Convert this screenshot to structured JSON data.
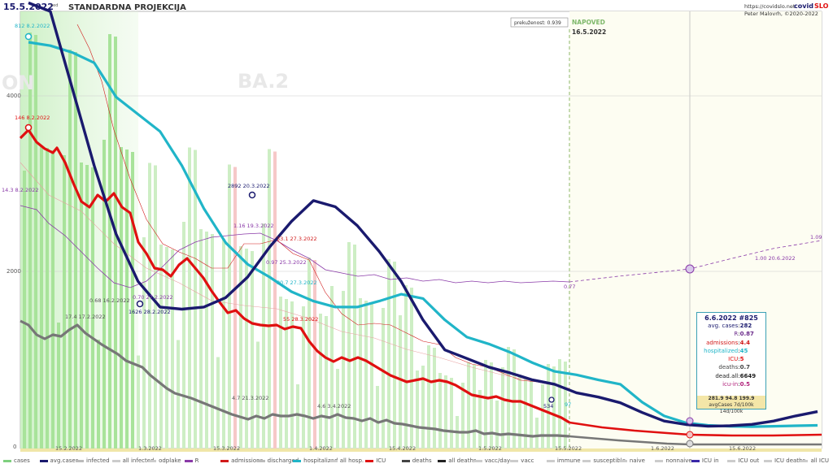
{
  "header": {
    "date": "15.5.2022",
    "date_sup": "ned",
    "title": "STANDARDNA PROJEKCIJA",
    "url": "https://covidslo.net",
    "brand_a": "covid",
    "brand_b": "SLO",
    "author": "Peter Malovrh, ©2020-2022",
    "forecast_label": "NAPOVED",
    "forecast_date": "16.5.2022",
    "exceed_label": "prekuženost: 0.939",
    "bg_left": "ON",
    "bg_variant": "BA.2"
  },
  "info_box": {
    "title": "6.6.2022 #825",
    "rows": [
      {
        "key": "avg. cases",
        "val": "282",
        "color": "#1a1a6e"
      },
      {
        "key": "R",
        "val": "0.87",
        "color": "#6a2a8a"
      },
      {
        "key": "admissions",
        "val": "4.4",
        "color": "#d11a1a"
      },
      {
        "key": "hospitalized",
        "val": "45",
        "color": "#20b5c8"
      },
      {
        "key": "ICU",
        "val": "5",
        "color": "#e01010"
      },
      {
        "key": "deaths",
        "val": "0.7",
        "color": "#444444"
      },
      {
        "key": "dead.all",
        "val": "6649",
        "color": "#222222"
      },
      {
        "key": "icu-in",
        "val": "0.5",
        "color": "#b0207a"
      }
    ],
    "foot1": "281.9   94.8   199.9",
    "foot2": "avgCases 7d/100k 14d/100k"
  },
  "legend": [
    {
      "label": "cases",
      "color": "#7ed07e"
    },
    {
      "label": "avg.cases",
      "color": "#1a1a6e"
    },
    {
      "label": "infected",
      "color": "#bbbbbb"
    },
    {
      "label": "all infected",
      "color": "#cccccc"
    },
    {
      "label": "odplake",
      "color": "#cccccc"
    },
    {
      "label": "R",
      "color": "#8a3aa8"
    },
    {
      "label": "admissions",
      "color": "#d11a1a"
    },
    {
      "label": "discharged",
      "color": "#bbbbbb"
    },
    {
      "label": "hospitalized",
      "color": "#20b5c8"
    },
    {
      "label": "all hosp.",
      "color": "#cccccc"
    },
    {
      "label": "ICU",
      "color": "#e01010"
    },
    {
      "label": "deaths",
      "color": "#444444"
    },
    {
      "label": "all deaths",
      "color": "#222222"
    },
    {
      "label": "vacc/day",
      "color": "#cccccc"
    },
    {
      "label": "vacc",
      "color": "#cccccc"
    },
    {
      "label": "immune",
      "color": "#cccccc"
    },
    {
      "label": "susceptible",
      "color": "#cccccc"
    },
    {
      "label": "naive",
      "color": "#cccccc"
    },
    {
      "label": "nonnaive",
      "color": "#cccccc"
    },
    {
      "label": "ICU in",
      "color": "#3a28a8"
    },
    {
      "label": "ICU out",
      "color": "#cccccc"
    },
    {
      "label": "ICU deaths",
      "color": "#cccccc"
    },
    {
      "label": "all ICU",
      "color": "#cccccc"
    }
  ],
  "chart_data": {
    "type": "line",
    "title": "STANDARDNA PROJEKCIJA",
    "y_ticks": [
      "0",
      "2000",
      "4000"
    ],
    "ylim": [
      0,
      5100
    ],
    "x_tick_labels": [
      "15.2.2022",
      "1.3.2022",
      "15.3.2022",
      "1.4.2022",
      "15.4.2022",
      "1.5.2022",
      "15.5.2022",
      "1.6.2022",
      "15.6.2022"
    ],
    "forecast_start": "16.5.2022",
    "series": [
      {
        "name": "avg.cases",
        "color": "#1a1a6e",
        "values": [
          5200,
          5100,
          4200,
          3300,
          2500,
          1950,
          1650,
          1626,
          1650,
          1760,
          2000,
          2350,
          2650,
          2892,
          2820,
          2600,
          2300,
          1950,
          1500,
          1150,
          1050,
          950,
          880,
          800,
          750,
          650,
          600,
          534,
          420,
          320,
          280,
          260,
          265,
          282,
          320,
          380,
          430
        ]
      },
      {
        "name": "hospitalized",
        "color": "#20b5c8",
        "values": [
          4740,
          4700,
          4620,
          4500,
          4100,
          3900,
          3700,
          3300,
          2800,
          2400,
          2150,
          2000,
          1830,
          1720,
          1650,
          1650,
          1720,
          1800,
          1750,
          1500,
          1300,
          1220,
          1120,
          1000,
          900,
          860,
          800,
          750,
          540,
          380,
          300,
          270,
          260,
          255,
          260,
          265,
          270
        ]
      }
    ],
    "annotations": [
      "812 8.2.2022",
      "146 8.2.2022",
      "14.3 8.2.2022",
      "2892 20.3.2022",
      "1626 28.2.2022",
      "0.70 27.2.2022",
      "1.16 19.3.2022",
      "0.97 25.3.2022",
      "33.1 27.3.2022",
      "30.7 27.3.2022",
      "55 28.3.2022",
      "17.4 17.2.2022",
      "0.68 16.2.2022",
      "4.7 21.3.2022",
      "4.6 3.4.2022",
      "0.77",
      "1.00 20.6.2022",
      "1.09",
      "534",
      "97"
    ]
  }
}
